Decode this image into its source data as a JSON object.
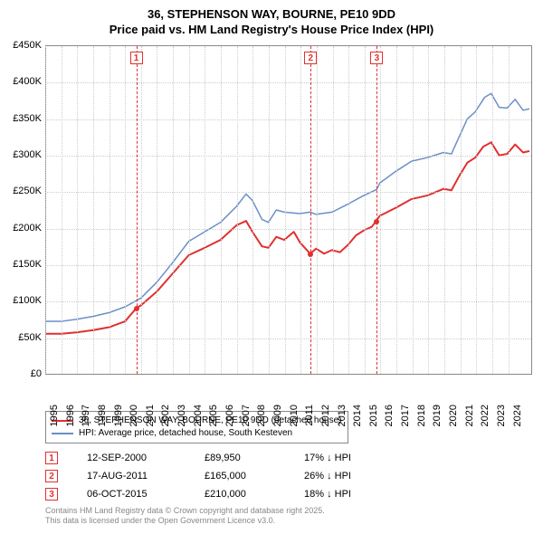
{
  "title": {
    "line1": "36, STEPHENSON WAY, BOURNE, PE10 9DD",
    "line2": "Price paid vs. HM Land Registry's House Price Index (HPI)"
  },
  "chart": {
    "type": "line",
    "background_color": "#ffffff",
    "grid_color": "#cccccc",
    "axis_color": "#888888",
    "x": {
      "min": 1995,
      "max": 2025.5,
      "ticks": [
        1995,
        1996,
        1997,
        1998,
        1999,
        2000,
        2001,
        2002,
        2003,
        2004,
        2005,
        2006,
        2007,
        2008,
        2009,
        2010,
        2011,
        2012,
        2013,
        2014,
        2015,
        2016,
        2017,
        2018,
        2019,
        2020,
        2021,
        2022,
        2023,
        2024
      ],
      "label_fontsize": 11
    },
    "y": {
      "min": 0,
      "max": 450000,
      "ticks": [
        0,
        50000,
        100000,
        150000,
        200000,
        250000,
        300000,
        350000,
        400000,
        450000
      ],
      "tick_labels": [
        "£0",
        "£50K",
        "£100K",
        "£150K",
        "£200K",
        "£250K",
        "£300K",
        "£350K",
        "£400K",
        "£450K"
      ],
      "label_fontsize": 11
    },
    "series": [
      {
        "name": "36, STEPHENSON WAY, BOURNE, PE10 9DD (detached house)",
        "color": "#e03030",
        "width": 2,
        "data": [
          [
            1995,
            55000
          ],
          [
            1996,
            55000
          ],
          [
            1997,
            57000
          ],
          [
            1998,
            60000
          ],
          [
            1999,
            64000
          ],
          [
            2000,
            72000
          ],
          [
            2000.7,
            89950
          ],
          [
            2001,
            94000
          ],
          [
            2002,
            113000
          ],
          [
            2003,
            138000
          ],
          [
            2004,
            163000
          ],
          [
            2005,
            173000
          ],
          [
            2006,
            184000
          ],
          [
            2007,
            204000
          ],
          [
            2007.6,
            210000
          ],
          [
            2008,
            195000
          ],
          [
            2008.6,
            175000
          ],
          [
            2009,
            173000
          ],
          [
            2009.5,
            188000
          ],
          [
            2010,
            184000
          ],
          [
            2010.6,
            195000
          ],
          [
            2011,
            180000
          ],
          [
            2011.63,
            165000
          ],
          [
            2012,
            172000
          ],
          [
            2012.5,
            165000
          ],
          [
            2013,
            170000
          ],
          [
            2013.5,
            167000
          ],
          [
            2014,
            177000
          ],
          [
            2014.5,
            190000
          ],
          [
            2015,
            197000
          ],
          [
            2015.5,
            202000
          ],
          [
            2015.77,
            210000
          ],
          [
            2016,
            217000
          ],
          [
            2017,
            228000
          ],
          [
            2018,
            240000
          ],
          [
            2019,
            245000
          ],
          [
            2020,
            254000
          ],
          [
            2020.5,
            252000
          ],
          [
            2021,
            272000
          ],
          [
            2021.5,
            290000
          ],
          [
            2022,
            297000
          ],
          [
            2022.5,
            312000
          ],
          [
            2023,
            318000
          ],
          [
            2023.5,
            300000
          ],
          [
            2024,
            302000
          ],
          [
            2024.5,
            315000
          ],
          [
            2025,
            304000
          ],
          [
            2025.4,
            306000
          ]
        ]
      },
      {
        "name": "HPI: Average price, detached house, South Kesteven",
        "color": "#6a8fc7",
        "width": 1.5,
        "data": [
          [
            1995,
            72000
          ],
          [
            1996,
            72000
          ],
          [
            1997,
            75000
          ],
          [
            1998,
            79000
          ],
          [
            1999,
            84000
          ],
          [
            2000,
            92000
          ],
          [
            2001,
            104000
          ],
          [
            2002,
            126000
          ],
          [
            2003,
            153000
          ],
          [
            2004,
            182000
          ],
          [
            2005,
            195000
          ],
          [
            2006,
            208000
          ],
          [
            2007,
            230000
          ],
          [
            2007.6,
            247000
          ],
          [
            2008,
            238000
          ],
          [
            2008.6,
            212000
          ],
          [
            2009,
            208000
          ],
          [
            2009.5,
            225000
          ],
          [
            2010,
            222000
          ],
          [
            2011,
            220000
          ],
          [
            2011.6,
            222000
          ],
          [
            2012,
            219000
          ],
          [
            2013,
            222000
          ],
          [
            2014,
            233000
          ],
          [
            2015,
            245000
          ],
          [
            2015.8,
            253000
          ],
          [
            2016,
            262000
          ],
          [
            2017,
            278000
          ],
          [
            2018,
            292000
          ],
          [
            2019,
            297000
          ],
          [
            2020,
            304000
          ],
          [
            2020.5,
            302000
          ],
          [
            2021,
            326000
          ],
          [
            2021.5,
            350000
          ],
          [
            2022,
            360000
          ],
          [
            2022.6,
            380000
          ],
          [
            2023,
            385000
          ],
          [
            2023.5,
            366000
          ],
          [
            2024,
            365000
          ],
          [
            2024.5,
            377000
          ],
          [
            2025,
            362000
          ],
          [
            2025.4,
            364000
          ]
        ]
      }
    ],
    "sale_markers": [
      {
        "num": "1",
        "x": 2000.7,
        "y": 89950,
        "color": "#e03030"
      },
      {
        "num": "2",
        "x": 2011.63,
        "y": 165000,
        "color": "#e03030"
      },
      {
        "num": "3",
        "x": 2015.77,
        "y": 210000,
        "color": "#e03030"
      }
    ],
    "marker_line_color": "#e03030"
  },
  "legend": {
    "items": [
      {
        "label": "36, STEPHENSON WAY, BOURNE, PE10 9DD (detached house)",
        "color": "#e03030"
      },
      {
        "label": "HPI: Average price, detached house, South Kesteven",
        "color": "#6a8fc7"
      }
    ]
  },
  "sales_table": {
    "rows": [
      {
        "num": "1",
        "date": "12-SEP-2000",
        "price": "£89,950",
        "pct": "17% ↓ HPI"
      },
      {
        "num": "2",
        "date": "17-AUG-2011",
        "price": "£165,000",
        "pct": "26% ↓ HPI"
      },
      {
        "num": "3",
        "date": "06-OCT-2015",
        "price": "£210,000",
        "pct": "18% ↓ HPI"
      }
    ]
  },
  "footer": {
    "line1": "Contains HM Land Registry data © Crown copyright and database right 2025.",
    "line2": "This data is licensed under the Open Government Licence v3.0."
  }
}
